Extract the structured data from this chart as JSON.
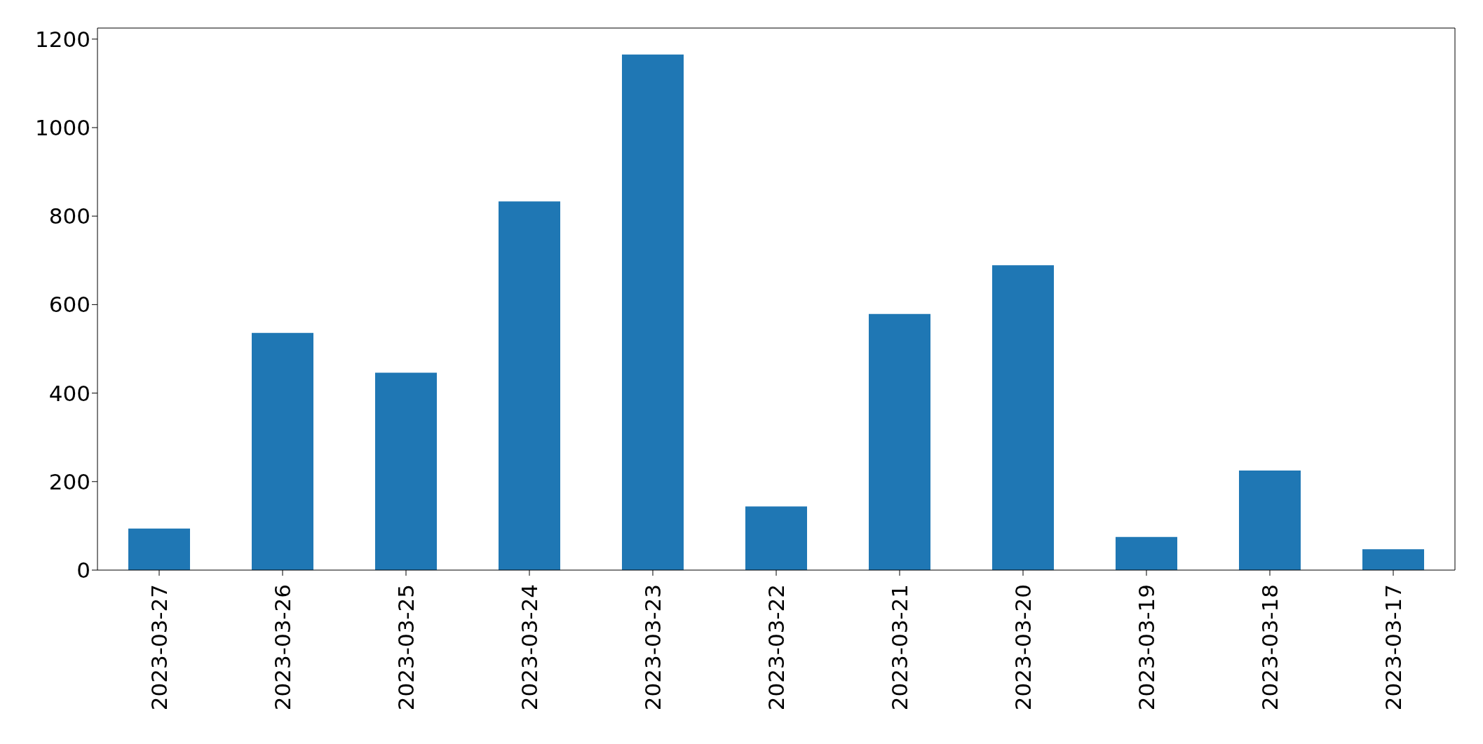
{
  "chart_data": {
    "type": "bar",
    "categories": [
      "2023-03-27",
      "2023-03-26",
      "2023-03-25",
      "2023-03-24",
      "2023-03-23",
      "2023-03-22",
      "2023-03-21",
      "2023-03-20",
      "2023-03-19",
      "2023-03-18",
      "2023-03-17"
    ],
    "values": [
      94,
      536,
      446,
      833,
      1165,
      144,
      579,
      689,
      75,
      225,
      47
    ],
    "color": "#1f77b4",
    "ylim": [
      0,
      1225
    ],
    "yticks": [
      0,
      200,
      400,
      600,
      800,
      1000,
      1200
    ],
    "grid": false
  }
}
